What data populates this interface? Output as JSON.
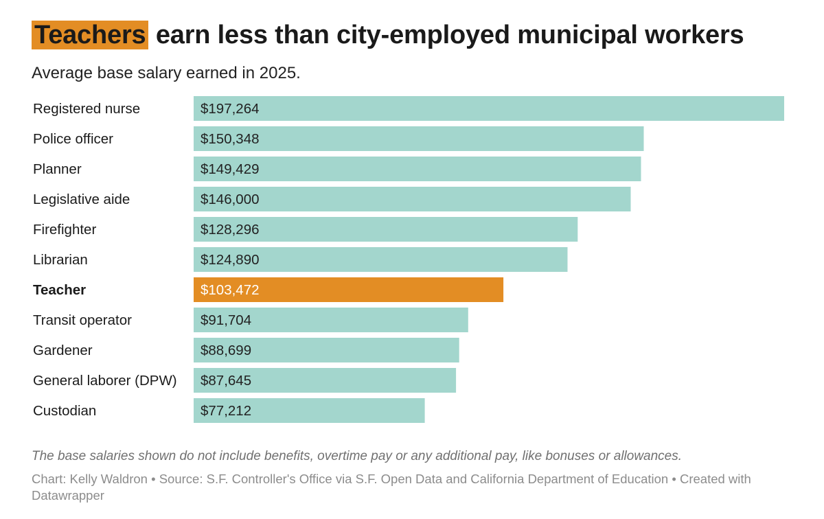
{
  "title": {
    "highlight": "Teachers",
    "rest": "earn less than city-employed municipal workers"
  },
  "subtitle": "Average base salary earned in 2025.",
  "colors": {
    "default_bar": "#a3d6cd",
    "highlight_bar": "#e38d24",
    "default_value_text": "#222222",
    "highlight_value_text": "#ffffff"
  },
  "chart_data": {
    "type": "bar",
    "orientation": "horizontal",
    "categories": [
      "Registered nurse",
      "Police officer",
      "Planner",
      "Legislative aide",
      "Firefighter",
      "Librarian",
      "Teacher",
      "Transit operator",
      "Gardener",
      "General laborer (DPW)",
      "Custodian"
    ],
    "values": [
      197264,
      150348,
      149429,
      146000,
      128296,
      124890,
      103472,
      91704,
      88699,
      87645,
      77212
    ],
    "value_labels": [
      "$197,264",
      "$150,348",
      "$149,429",
      "$146,000",
      "$128,296",
      "$124,890",
      "$103,472",
      "$91,704",
      "$88,699",
      "$87,645",
      "$77,212"
    ],
    "highlighted_category": "Teacher",
    "xlim": [
      0,
      197264
    ],
    "grid": false,
    "legend": "none"
  },
  "footer": {
    "note": "The base salaries shown do not include benefits, overtime pay or any additional pay, like bonuses or allowances.",
    "credits": "Chart: Kelly Waldron • Source: S.F. Controller's Office via S.F. Open Data and California Department of Education • Created with Datawrapper"
  }
}
